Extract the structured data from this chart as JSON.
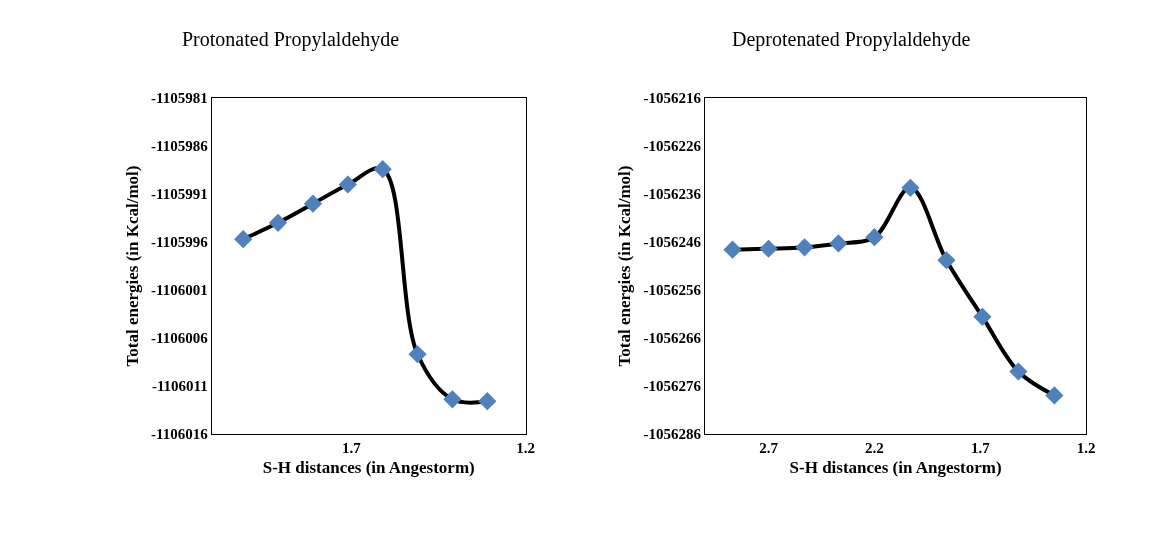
{
  "chart_data": [
    {
      "type": "line",
      "title": "Protonated Propylaldehyde",
      "xlabel": "S-H distances (in Angestorm)",
      "ylabel": "Total energies (in Kcal/mol)",
      "marker": "diamond",
      "line_style": "solid",
      "x": [
        2.01,
        1.91,
        1.81,
        1.71,
        1.61,
        1.51,
        1.41,
        1.31
      ],
      "series": [
        {
          "color": "#4f81bd",
          "values": [
            -1105995.7,
            -1105994.0,
            -1105992.0,
            -1105990.0,
            -1105988.4,
            -1106007.7,
            -1106012.4,
            -1106012.6
          ]
        }
      ],
      "xlim": [
        2.1,
        1.2
      ],
      "xticks": [
        1.7,
        1.2
      ],
      "ylim": [
        -1106016,
        -1105981
      ],
      "yticks": [
        -1106016,
        -1106011,
        -1106006,
        -1106001,
        -1105996,
        -1105991,
        -1105986,
        -1105981
      ]
    },
    {
      "type": "line",
      "title": "Deprotenated Propylaldehyde",
      "xlabel": "S-H distances (in Angestorm)",
      "ylabel": "Total energies (in Kcal/mol)",
      "marker": "diamond",
      "line_style": "solid",
      "x": [
        2.87,
        2.7,
        2.53,
        2.37,
        2.2,
        2.03,
        1.86,
        1.69,
        1.52,
        1.35
      ],
      "series": [
        {
          "color": "#4f81bd",
          "values": [
            -1056247.6,
            -1056247.4,
            -1056247.1,
            -1056246.3,
            -1056245.0,
            -1056234.7,
            -1056249.8,
            -1056261.6,
            -1056273.0,
            -1056278.0
          ]
        }
      ],
      "xlim": [
        3.0,
        1.2
      ],
      "xticks": [
        2.7,
        2.2,
        1.7,
        1.2
      ],
      "ylim": [
        -1056286,
        -1056216
      ],
      "yticks": [
        -1056286,
        -1056276,
        -1056266,
        -1056256,
        -1056246,
        -1056236,
        -1056226,
        -1056216
      ]
    }
  ]
}
